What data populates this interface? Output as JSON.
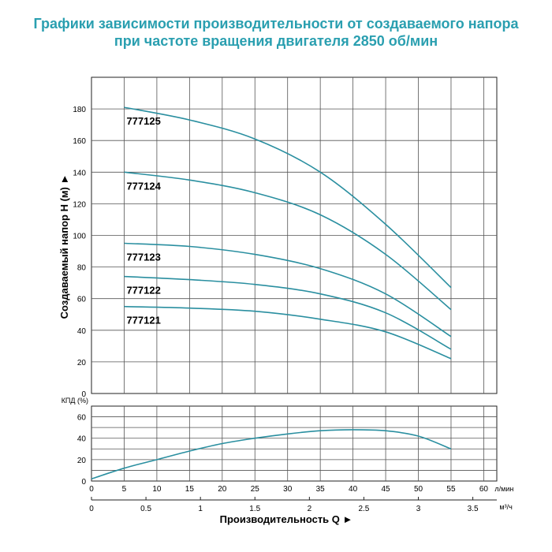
{
  "title_line1": "Графики зависимости производительности от создаваемого напора",
  "title_line2": "при частоте вращения двигателя 2850 об/мин",
  "colors": {
    "title": "#2a9fb0",
    "curve": "#2a8fa0",
    "grid": "#555555"
  },
  "chart_data": [
    {
      "type": "line",
      "ylabel": "Создаваемый напор H (м) ►",
      "xlim": [
        0,
        62
      ],
      "ylim": [
        0,
        200
      ],
      "yticks": [
        0,
        20,
        40,
        60,
        80,
        100,
        120,
        140,
        160,
        180
      ],
      "grid": true,
      "series": [
        {
          "name": "777125",
          "x": [
            5,
            15,
            25,
            35,
            45,
            55
          ],
          "y": [
            181,
            173,
            161,
            140,
            107,
            67
          ]
        },
        {
          "name": "777124",
          "x": [
            5,
            15,
            25,
            35,
            45,
            55
          ],
          "y": [
            140,
            135,
            127,
            113,
            88,
            53
          ]
        },
        {
          "name": "777123",
          "x": [
            5,
            15,
            25,
            35,
            45,
            55
          ],
          "y": [
            95,
            93,
            88,
            79,
            63,
            36
          ]
        },
        {
          "name": "777122",
          "x": [
            5,
            15,
            25,
            35,
            45,
            55
          ],
          "y": [
            74,
            72,
            69,
            63,
            51,
            28
          ]
        },
        {
          "name": "777121",
          "x": [
            5,
            15,
            25,
            35,
            45,
            55
          ],
          "y": [
            55,
            54,
            52,
            47,
            39,
            22
          ]
        }
      ]
    },
    {
      "type": "line",
      "ylabel": "КПД (%)",
      "xlabel": "Производительность Q ►",
      "xlim": [
        0,
        62
      ],
      "ylim": [
        0,
        70
      ],
      "yticks": [
        0,
        20,
        40,
        60
      ],
      "xticks_lpm": [
        "0",
        "5",
        "10",
        "15",
        "20",
        "25",
        "30",
        "35",
        "40",
        "45",
        "50",
        "55",
        "60"
      ],
      "xunit_lpm": "л/мин",
      "xticks_m3h": [
        "0",
        "0.5",
        "1",
        "1.5",
        "2",
        "2.5",
        "3",
        "3.5"
      ],
      "xunit_m3h": "м³/ч",
      "grid": true,
      "series": [
        {
          "x": [
            0,
            5,
            10,
            15,
            20,
            25,
            30,
            35,
            40,
            45,
            50,
            55
          ],
          "y": [
            2,
            12,
            20,
            28,
            35,
            40,
            44,
            47,
            48,
            47,
            42,
            30
          ]
        }
      ]
    }
  ]
}
